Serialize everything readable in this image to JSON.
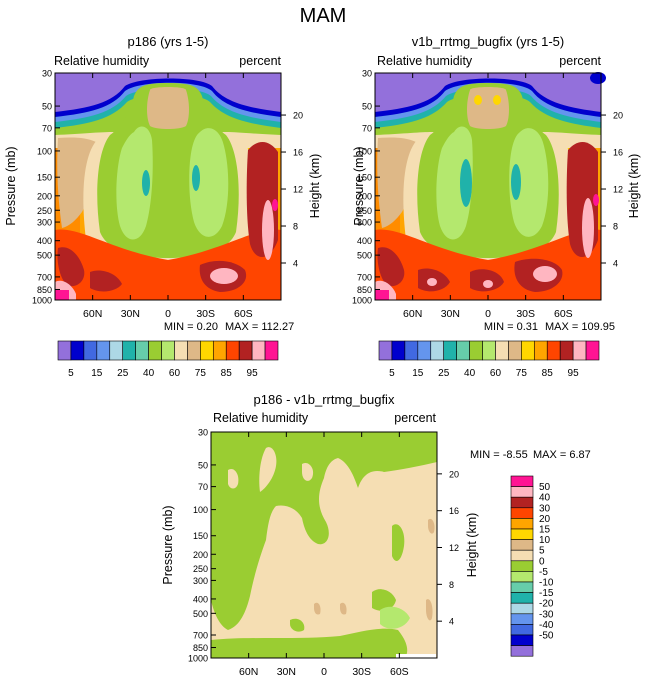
{
  "figure_title": "MAM",
  "chart_data": [
    {
      "type": "heatmap",
      "title": "p186 (yrs 1-5)",
      "variable_label": "Relative humidity",
      "units_label": "percent",
      "xlabel": "",
      "ylabel": "Pressure (mb)",
      "ylabel_right": "Height (km)",
      "x_tick_labels": [
        "60N",
        "30N",
        "0",
        "30S",
        "60S"
      ],
      "x_tick_values": [
        60,
        30,
        0,
        -30,
        -60
      ],
      "xlim": [
        90,
        -90
      ],
      "y_tick_labels": [
        "30",
        "50",
        "70",
        "100",
        "150",
        "200",
        "250",
        "300",
        "400",
        "500",
        "700",
        "850",
        "1000"
      ],
      "y_tick_values": [
        30,
        50,
        70,
        100,
        150,
        200,
        250,
        300,
        400,
        500,
        700,
        850,
        1000
      ],
      "ylim": [
        30,
        1000
      ],
      "height_tick_labels": [
        "20",
        "16",
        "12",
        "8",
        "4"
      ],
      "height_tick_values": [
        20,
        16,
        12,
        8,
        4
      ],
      "min_text": "MIN =  0.20",
      "max_text": "MAX = 112.27",
      "min": 0.2,
      "max": 112.27
    },
    {
      "type": "heatmap",
      "title": "v1b_rrtmg_bugfix (yrs 1-5)",
      "variable_label": "Relative humidity",
      "units_label": "percent",
      "xlabel": "",
      "ylabel": "Pressure (mb)",
      "ylabel_right": "Height (km)",
      "x_tick_labels": [
        "60N",
        "30N",
        "0",
        "30S",
        "60S"
      ],
      "x_tick_values": [
        60,
        30,
        0,
        -30,
        -60
      ],
      "xlim": [
        90,
        -90
      ],
      "y_tick_labels": [
        "30",
        "50",
        "70",
        "100",
        "150",
        "200",
        "250",
        "300",
        "400",
        "500",
        "700",
        "850",
        "1000"
      ],
      "y_tick_values": [
        30,
        50,
        70,
        100,
        150,
        200,
        250,
        300,
        400,
        500,
        700,
        850,
        1000
      ],
      "ylim": [
        30,
        1000
      ],
      "height_tick_labels": [
        "20",
        "16",
        "12",
        "8",
        "4"
      ],
      "height_tick_values": [
        20,
        16,
        12,
        8,
        4
      ],
      "min_text": "MIN =  0.31",
      "max_text": "MAX = 109.95",
      "min": 0.31,
      "max": 109.95
    },
    {
      "type": "heatmap",
      "title": "p186 - v1b_rrtmg_bugfix",
      "variable_label": "Relative humidity",
      "units_label": "percent",
      "xlabel": "",
      "ylabel": "Pressure (mb)",
      "ylabel_right": "Height (km)",
      "x_tick_labels": [
        "60N",
        "30N",
        "0",
        "30S",
        "60S"
      ],
      "x_tick_values": [
        60,
        30,
        0,
        -30,
        -60
      ],
      "xlim": [
        90,
        -90
      ],
      "y_tick_labels": [
        "30",
        "50",
        "70",
        "100",
        "150",
        "200",
        "250",
        "300",
        "400",
        "500",
        "700",
        "850",
        "1000"
      ],
      "y_tick_values": [
        30,
        50,
        70,
        100,
        150,
        200,
        250,
        300,
        400,
        500,
        700,
        850,
        1000
      ],
      "ylim": [
        30,
        1000
      ],
      "height_tick_labels": [
        "20",
        "16",
        "12",
        "8",
        "4"
      ],
      "height_tick_values": [
        20,
        16,
        12,
        8,
        4
      ],
      "min_text": "MIN =  -8.55",
      "max_text": "MAX =  6.87",
      "min": -8.55,
      "max": 6.87
    }
  ],
  "rh_colorbar": {
    "colors": [
      "#9370db",
      "#0000cd",
      "#4169e1",
      "#6495ed",
      "#add8e6",
      "#20b2aa",
      "#66cdaa",
      "#9acd32",
      "#b4e86e",
      "#f5deb3",
      "#deb887",
      "#ffd700",
      "#ffa500",
      "#ff4500",
      "#b22222",
      "#ffb6c1",
      "#ff1493"
    ],
    "labels": [
      "5",
      "15",
      "25",
      "40",
      "60",
      "75",
      "85",
      "95"
    ]
  },
  "diff_colorbar": {
    "colors_top_to_bottom": [
      "#ff1493",
      "#ffb6c1",
      "#b22222",
      "#ff4500",
      "#ffa500",
      "#ffd700",
      "#deb887",
      "#f5deb3",
      "#9acd32",
      "#b4e86e",
      "#66cdaa",
      "#20b2aa",
      "#add8e6",
      "#6495ed",
      "#4169e1",
      "#0000cd",
      "#9370db"
    ],
    "labels": [
      "50",
      "40",
      "30",
      "20",
      "15",
      "10",
      "5",
      "0",
      "-5",
      "-10",
      "-15",
      "-20",
      "-30",
      "-40",
      "-50"
    ]
  }
}
